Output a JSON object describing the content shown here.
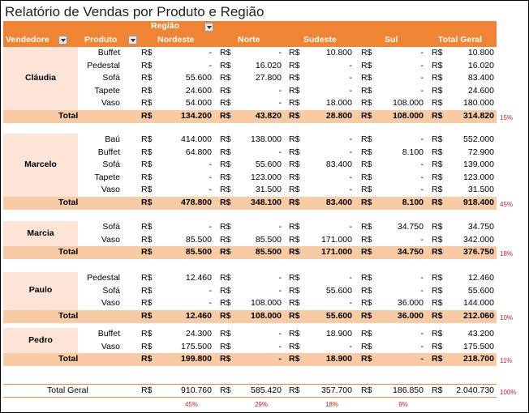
{
  "title": "Relatório de Vendas por Produto e Região",
  "header": {
    "vendedor": "Vendedore",
    "produto": "Produto",
    "regiao": "Região",
    "regions": [
      "Nordeste",
      "Norte",
      "Sudeste",
      "Sul"
    ],
    "total_geral": "Total Geral"
  },
  "currency": "R$",
  "total_label": "Total",
  "groups": [
    {
      "name": "Cláudia",
      "rows": [
        {
          "produto": "Buffet",
          "values": [
            "-",
            "-",
            "10.800",
            "-",
            "10.800"
          ]
        },
        {
          "produto": "Pedestal",
          "values": [
            "-",
            "16.020",
            "-",
            "-",
            "16.020"
          ]
        },
        {
          "produto": "Sofá",
          "values": [
            "55.600",
            "27.800",
            "-",
            "-",
            "83.400"
          ]
        },
        {
          "produto": "Tapete",
          "values": [
            "24.600",
            "-",
            "-",
            "-",
            "24.600"
          ]
        },
        {
          "produto": "Vaso",
          "values": [
            "54.000",
            "-",
            "18.000",
            "108.000",
            "180.000"
          ]
        }
      ],
      "total": [
        "134.200",
        "43.820",
        "28.800",
        "108.000",
        "314.820"
      ],
      "pct": "15%"
    },
    {
      "name": "Marcelo",
      "rows": [
        {
          "produto": "Baú",
          "values": [
            "414.000",
            "138.000",
            "-",
            "-",
            "552.000"
          ]
        },
        {
          "produto": "Buffet",
          "values": [
            "64.800",
            "-",
            "-",
            "8.100",
            "72.900"
          ]
        },
        {
          "produto": "Sofá",
          "values": [
            "-",
            "55.600",
            "83.400",
            "-",
            "139.000"
          ]
        },
        {
          "produto": "Tapete",
          "values": [
            "-",
            "123.000",
            "-",
            "-",
            "123.000"
          ]
        },
        {
          "produto": "Vaso",
          "values": [
            "-",
            "31.500",
            "-",
            "-",
            "31.500"
          ]
        }
      ],
      "total": [
        "478.800",
        "348.100",
        "83.400",
        "8.100",
        "918.400"
      ],
      "pct": "45%"
    },
    {
      "name": "Marcia",
      "rows": [
        {
          "produto": "Sofá",
          "values": [
            "-",
            "-",
            "-",
            "34.750",
            "34.750"
          ]
        },
        {
          "produto": "Vaso",
          "values": [
            "85.500",
            "85.500",
            "171.000",
            "-",
            "342.000"
          ]
        }
      ],
      "total": [
        "85.500",
        "85.500",
        "171.000",
        "34.750",
        "376.750"
      ],
      "pct": "18%"
    },
    {
      "name": "Paulo",
      "rows": [
        {
          "produto": "Pedestal",
          "values": [
            "12.460",
            "-",
            "-",
            "-",
            "12.460"
          ]
        },
        {
          "produto": "Sofá",
          "values": [
            "-",
            "-",
            "55.600",
            "-",
            "55.600"
          ]
        },
        {
          "produto": "Vaso",
          "values": [
            "-",
            "108.000",
            "-",
            "36.000",
            "144.000"
          ]
        }
      ],
      "total": [
        "12.460",
        "108.000",
        "55.600",
        "36.000",
        "212.060"
      ],
      "pct": "10%"
    },
    {
      "name": "Pedro",
      "rows": [
        {
          "produto": "Buffet",
          "values": [
            "24.300",
            "-",
            "18.900",
            "-",
            "43.200"
          ]
        },
        {
          "produto": "Vaso",
          "values": [
            "175.500",
            "-",
            "-",
            "-",
            "175.500"
          ]
        }
      ],
      "total": [
        "199.800",
        "-",
        "18.900",
        "-",
        "218.700"
      ],
      "pct": "11%"
    }
  ],
  "grand_total": {
    "label": "Total Geral",
    "values": [
      "910.760",
      "585.420",
      "357.700",
      "186.850",
      "2.040.730"
    ],
    "pct": "100%",
    "region_pcts": [
      "45%",
      "29%",
      "18%",
      "9%"
    ]
  }
}
